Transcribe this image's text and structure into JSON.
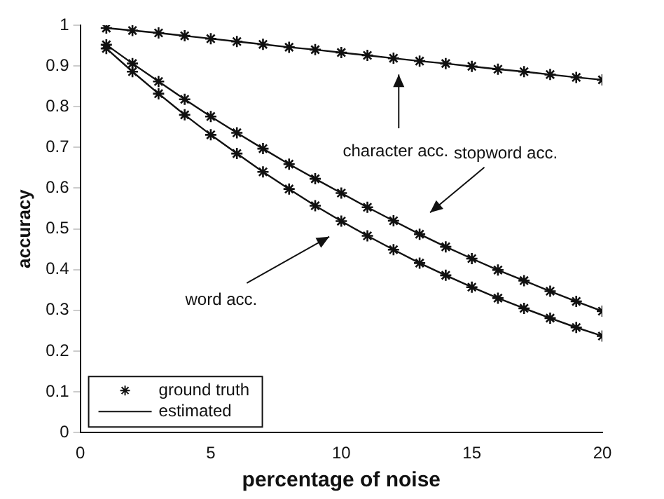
{
  "chart_data": {
    "type": "line",
    "xlabel": "percentage of noise",
    "ylabel": "accuracy",
    "xlim": [
      0,
      20
    ],
    "xticks": [
      0,
      5,
      10,
      15,
      20
    ],
    "ylim": [
      0,
      1
    ],
    "yticks": [
      0,
      0.1,
      0.2,
      0.3,
      0.4,
      0.5,
      0.6,
      0.7,
      0.8,
      0.9,
      1
    ],
    "grid": false,
    "legend": "bottom left",
    "line_style": "solid",
    "series": [
      {
        "name": "ground truth",
        "type": "scatter",
        "marker": "cross",
        "color": "#111111",
        "x": [
          1,
          2,
          3,
          4,
          5,
          6,
          7,
          8,
          9,
          10,
          11,
          12,
          13,
          14,
          15,
          16,
          17,
          18,
          19,
          20,
          1,
          2,
          3,
          4,
          5,
          6,
          7,
          8,
          9,
          10,
          11,
          12,
          13,
          14,
          15,
          16,
          17,
          18,
          19,
          20,
          1,
          2,
          3,
          4,
          5,
          6,
          7,
          8,
          9,
          10,
          11,
          12,
          13,
          14,
          15,
          16,
          17,
          18,
          19,
          20
        ],
        "values": [
          0.993,
          0.987,
          0.981,
          0.974,
          0.967,
          0.96,
          0.953,
          0.946,
          0.94,
          0.933,
          0.926,
          0.919,
          0.912,
          0.906,
          0.899,
          0.892,
          0.886,
          0.879,
          0.872,
          0.866,
          0.952,
          0.906,
          0.862,
          0.818,
          0.776,
          0.736,
          0.697,
          0.659,
          0.623,
          0.588,
          0.553,
          0.52,
          0.487,
          0.456,
          0.427,
          0.399,
          0.373,
          0.347,
          0.322,
          0.298,
          0.943,
          0.886,
          0.832,
          0.78,
          0.731,
          0.685,
          0.64,
          0.598,
          0.557,
          0.519,
          0.483,
          0.449,
          0.416,
          0.386,
          0.357,
          0.33,
          0.305,
          0.281,
          0.258,
          0.237
        ]
      },
      {
        "name": "estimated",
        "marker": "none",
        "color": "#111111",
        "x": [
          1,
          2,
          3,
          4,
          5,
          6,
          7,
          8,
          9,
          10,
          11,
          12,
          13,
          14,
          15,
          16,
          17,
          18,
          19,
          20
        ],
        "values": [
          0.993,
          0.987,
          0.981,
          0.974,
          0.967,
          0.96,
          0.953,
          0.946,
          0.94,
          0.933,
          0.926,
          0.919,
          0.912,
          0.906,
          0.899,
          0.892,
          0.886,
          0.879,
          0.872,
          0.866
        ]
      },
      {
        "marker": "none",
        "color": "#111111",
        "x": [
          1,
          2,
          3,
          4,
          5,
          6,
          7,
          8,
          9,
          10,
          11,
          12,
          13,
          14,
          15,
          16,
          17,
          18,
          19,
          20
        ],
        "values": [
          0.952,
          0.906,
          0.862,
          0.818,
          0.776,
          0.736,
          0.697,
          0.659,
          0.623,
          0.588,
          0.553,
          0.52,
          0.487,
          0.456,
          0.427,
          0.399,
          0.373,
          0.347,
          0.322,
          0.298
        ]
      },
      {
        "marker": "none",
        "color": "#111111",
        "x": [
          1,
          2,
          3,
          4,
          5,
          6,
          7,
          8,
          9,
          10,
          11,
          12,
          13,
          14,
          15,
          16,
          17,
          18,
          19,
          20
        ],
        "values": [
          0.943,
          0.886,
          0.832,
          0.78,
          0.731,
          0.685,
          0.64,
          0.598,
          0.557,
          0.519,
          0.483,
          0.449,
          0.416,
          0.386,
          0.357,
          0.33,
          0.305,
          0.281,
          0.258,
          0.237
        ]
      }
    ],
    "annotations": [
      "character acc.",
      "stopword acc.",
      "word acc."
    ]
  }
}
